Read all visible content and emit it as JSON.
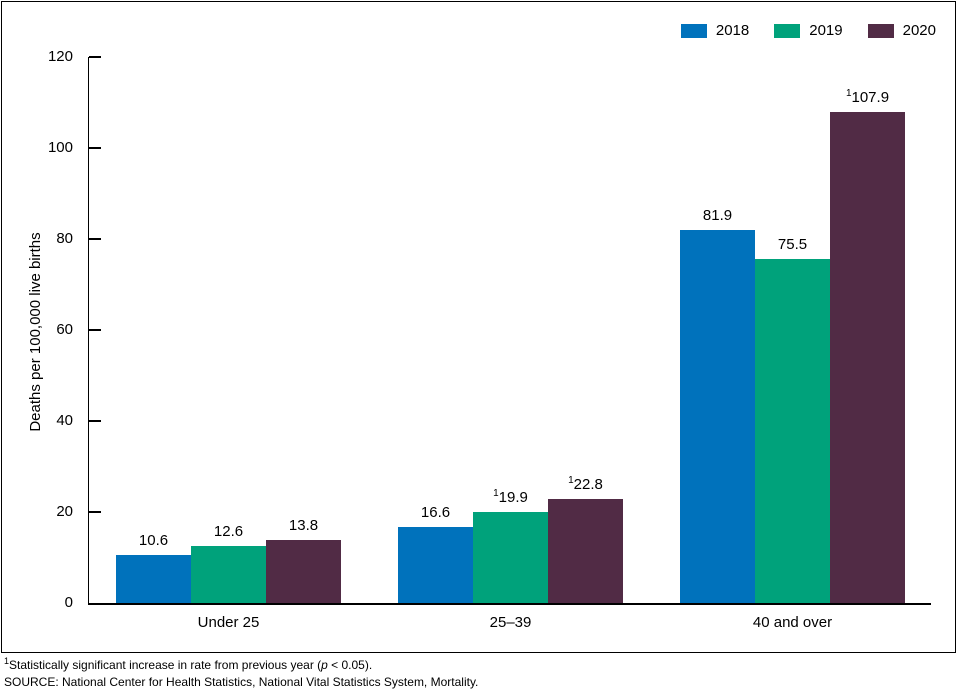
{
  "chart_data": {
    "type": "bar",
    "title": "",
    "ylabel": "Deaths per 100,000 live births",
    "xlabel": "",
    "ylim": [
      0,
      120
    ],
    "yticks": [
      0,
      20,
      40,
      60,
      80,
      100,
      120
    ],
    "categories": [
      "Under 25",
      "25–39",
      "40 and over"
    ],
    "series": [
      {
        "name": "2018",
        "color": "#0072BC",
        "values": [
          10.6,
          16.6,
          81.9
        ],
        "significant": [
          false,
          false,
          false
        ]
      },
      {
        "name": "2019",
        "color": "#00A27B",
        "values": [
          12.6,
          19.9,
          75.5
        ],
        "significant": [
          false,
          true,
          false
        ]
      },
      {
        "name": "2020",
        "color": "#512B45",
        "values": [
          13.8,
          22.8,
          107.9
        ],
        "significant": [
          false,
          true,
          true
        ]
      }
    ],
    "significance_marker": "1",
    "legend_position": "top-right",
    "grid": false
  },
  "footnotes": {
    "line1": {
      "sup": "1",
      "text1": "Statistically significant increase in rate from previous year (",
      "italic": "p",
      "text2": " < 0.05)."
    },
    "line2": "SOURCE: National Center for Health Statistics, National Vital Statistics System, Mortality."
  }
}
